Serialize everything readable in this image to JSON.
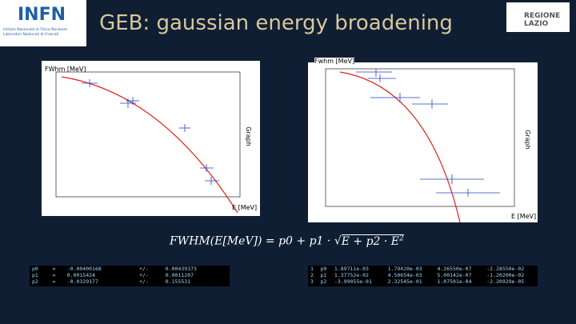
{
  "header": {
    "title": "GEB: gaussian energy broadening",
    "logo_left": "INFN",
    "logo_left_sub1": "Istituto Nazionale di Fisica Nucleare",
    "logo_left_sub2": "Laboratori Nazionali di Frascati",
    "logo_right": "REGIONE LAZIO"
  },
  "plots": [
    {
      "y_label": "FWhm [MeV]",
      "x_label": "E [MeV]",
      "side_label": "Graph"
    },
    {
      "y_label": "Fwhm [MeV]",
      "x_label": "E [MeV]",
      "side_label": "Graph"
    }
  ],
  "formula": {
    "lhs": "FWHM(E[MeV]) = p0 + p1 ·",
    "radicand": "E + p2 · E",
    "exponent": "2"
  },
  "tables": [
    {
      "rows": [
        [
          "p0",
          "=",
          "-0.00400168",
          "+/-",
          "0.00439373"
        ],
        [
          "p1",
          "=",
          "0.0015424",
          "+/-",
          "0.0011207"
        ],
        [
          "p2",
          "=",
          "-0.0329177",
          "+/-",
          "0.155531"
        ]
      ]
    },
    {
      "rows": [
        [
          "1",
          "p0",
          "1.89711e-03",
          "1.79420e-03",
          "4.26550e-07",
          "-2.28550e-02"
        ],
        [
          "2",
          "p1",
          "1.37752e-02",
          "4.50654e-03",
          "5.00142e-07",
          "-1.20200e-02"
        ],
        [
          "3",
          "p2",
          "-3.99055e-01",
          "2.32545e-01",
          "1.07501e-04",
          "-2.20929e-05"
        ]
      ]
    }
  ]
}
